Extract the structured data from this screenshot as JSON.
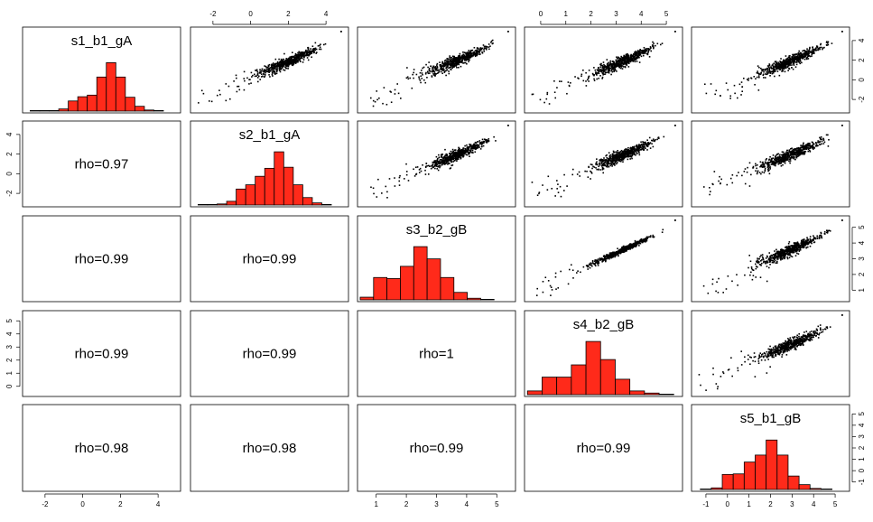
{
  "chart_data": {
    "type": "scatter_matrix",
    "variables": [
      "s1_b1_gA",
      "s2_b1_gA",
      "s3_b2_gB",
      "s4_b2_gB",
      "s5_b1_gB"
    ],
    "colors": {
      "histogram_fill": "#ff2a1a",
      "histogram_edge": "#000000",
      "points": "#000000",
      "frame": "#000000"
    },
    "correlations": [
      {
        "row": 2,
        "col": 1,
        "label": "rho=0.97"
      },
      {
        "row": 3,
        "col": 1,
        "label": "rho=0.99"
      },
      {
        "row": 3,
        "col": 2,
        "label": "rho=0.99"
      },
      {
        "row": 4,
        "col": 1,
        "label": "rho=0.99"
      },
      {
        "row": 4,
        "col": 2,
        "label": "rho=0.99"
      },
      {
        "row": 4,
        "col": 3,
        "label": "rho=1"
      },
      {
        "row": 5,
        "col": 1,
        "label": "rho=0.98"
      },
      {
        "row": 5,
        "col": 2,
        "label": "rho=0.98"
      },
      {
        "row": 5,
        "col": 3,
        "label": "rho=0.99"
      },
      {
        "row": 5,
        "col": 4,
        "label": "rho=0.99"
      }
    ],
    "histograms": [
      {
        "variable": "s1_b1_gA",
        "xlim": [
          -2.4,
          5.9
        ],
        "bins": [
          [
            -2.0,
            -1.5,
            0.01
          ],
          [
            -1.5,
            -1.0,
            0.01
          ],
          [
            -1.0,
            -0.5,
            0.01
          ],
          [
            -0.5,
            0.0,
            0.04
          ],
          [
            0.0,
            0.5,
            0.19
          ],
          [
            0.5,
            1.0,
            0.27
          ],
          [
            1.0,
            1.5,
            0.3
          ],
          [
            1.5,
            2.0,
            0.64
          ],
          [
            2.0,
            2.5,
            0.91
          ],
          [
            2.5,
            3.0,
            0.64
          ],
          [
            3.0,
            3.5,
            0.26
          ],
          [
            3.5,
            4.0,
            0.09
          ],
          [
            4.0,
            4.5,
            0.02
          ],
          [
            4.5,
            5.0,
            0.01
          ]
        ]
      },
      {
        "variable": "s2_b1_gA",
        "xlim": [
          -2.4,
          5.9
        ],
        "bins": [
          [
            -2.0,
            -1.5,
            0.01
          ],
          [
            -1.5,
            -1.0,
            0.01
          ],
          [
            -1.0,
            -0.5,
            0.02
          ],
          [
            -0.5,
            0.0,
            0.07
          ],
          [
            0.0,
            0.5,
            0.3
          ],
          [
            0.5,
            1.0,
            0.38
          ],
          [
            1.0,
            1.5,
            0.54
          ],
          [
            1.5,
            2.0,
            0.69
          ],
          [
            2.0,
            2.5,
            1.0
          ],
          [
            2.5,
            3.0,
            0.71
          ],
          [
            3.0,
            3.5,
            0.38
          ],
          [
            3.5,
            4.0,
            0.14
          ],
          [
            4.0,
            4.5,
            0.04
          ],
          [
            4.5,
            5.0,
            0.01
          ]
        ]
      },
      {
        "variable": "s3_b2_gB",
        "xlim": [
          -0.1,
          5.8
        ],
        "bins": [
          [
            0.0,
            0.5,
            0.05
          ],
          [
            0.5,
            1.0,
            0.42
          ],
          [
            1.0,
            1.5,
            0.4
          ],
          [
            1.5,
            2.0,
            0.63
          ],
          [
            2.0,
            2.5,
            1.0
          ],
          [
            2.5,
            3.0,
            0.77
          ],
          [
            3.0,
            3.5,
            0.42
          ],
          [
            3.5,
            4.0,
            0.14
          ],
          [
            4.0,
            4.5,
            0.03
          ],
          [
            4.5,
            5.0,
            0.01
          ]
        ]
      },
      {
        "variable": "s4_b2_gB",
        "xlim": [
          -0.1,
          5.3
        ],
        "bins": [
          [
            0.0,
            0.5,
            0.07
          ],
          [
            0.5,
            1.0,
            0.33
          ],
          [
            1.0,
            1.5,
            0.33
          ],
          [
            1.5,
            2.0,
            0.56
          ],
          [
            2.0,
            2.5,
            1.0
          ],
          [
            2.5,
            3.0,
            0.66
          ],
          [
            3.0,
            3.5,
            0.29
          ],
          [
            3.5,
            4.0,
            0.07
          ],
          [
            4.0,
            4.5,
            0.03
          ],
          [
            4.5,
            5.0,
            0.01
          ]
        ]
      },
      {
        "variable": "s5_b1_gB",
        "xlim": [
          -1.4,
          5.8
        ],
        "bins": [
          [
            -1.0,
            -0.5,
            0.01
          ],
          [
            -0.5,
            0.0,
            0.03
          ],
          [
            0.0,
            0.5,
            0.28
          ],
          [
            0.5,
            1.0,
            0.29
          ],
          [
            1.0,
            1.5,
            0.51
          ],
          [
            1.5,
            2.0,
            0.64
          ],
          [
            2.0,
            2.5,
            0.92
          ],
          [
            2.5,
            3.0,
            0.64
          ],
          [
            3.0,
            3.5,
            0.25
          ],
          [
            3.5,
            4.0,
            0.09
          ],
          [
            4.0,
            4.5,
            0.02
          ],
          [
            4.5,
            5.0,
            0.01
          ]
        ]
      }
    ],
    "axes": {
      "top": [
        {
          "col": 2,
          "ticks": [
            "-2",
            "0",
            "2",
            "4"
          ]
        },
        {
          "col": 4,
          "ticks": [
            "0",
            "1",
            "2",
            "3",
            "4",
            "5"
          ]
        }
      ],
      "bottom": [
        {
          "col": 1,
          "ticks": [
            "-2",
            "0",
            "2",
            "4"
          ]
        },
        {
          "col": 3,
          "ticks": [
            "1",
            "2",
            "3",
            "4",
            "5"
          ]
        },
        {
          "col": 5,
          "ticks": [
            "-1",
            "0",
            "1",
            "2",
            "3",
            "4",
            "5"
          ]
        }
      ],
      "left": [
        {
          "row": 2,
          "ticks": [
            "-2",
            "0",
            "2",
            "4"
          ]
        },
        {
          "row": 4,
          "ticks": [
            "0",
            "1",
            "2",
            "3",
            "4",
            "5"
          ]
        }
      ],
      "right": [
        {
          "row": 1,
          "ticks": [
            "-2",
            "0",
            "2",
            "4"
          ]
        },
        {
          "row": 3,
          "ticks": [
            "1",
            "2",
            "3",
            "4",
            "5"
          ]
        },
        {
          "row": 5,
          "ticks": [
            "-1",
            "0",
            "1",
            "2",
            "3",
            "4",
            "5"
          ]
        }
      ]
    }
  }
}
